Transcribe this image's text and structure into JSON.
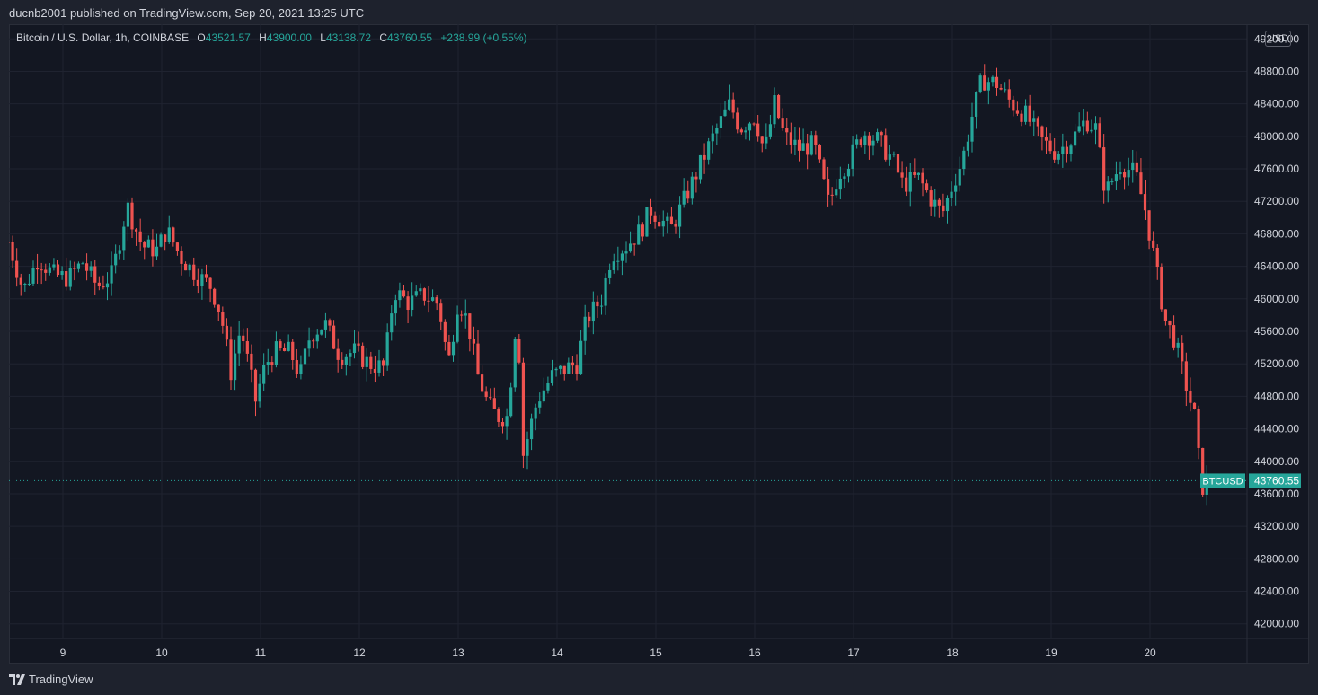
{
  "header": {
    "publisher_line": "ducnb2001 published on TradingView.com, Sep 20, 2021 13:25 UTC"
  },
  "legend": {
    "title": "Bitcoin / U.S. Dollar, 1h, COINBASE",
    "o_label": "O",
    "o_value": "43521.57",
    "h_label": "H",
    "h_value": "43900.00",
    "l_label": "L",
    "l_value": "43138.72",
    "c_label": "C",
    "c_value": "43760.55",
    "change": "+238.99 (+0.55%)"
  },
  "currency_button": "USD",
  "footer": {
    "brand": "TradingView"
  },
  "colors": {
    "up": "#26a69a",
    "down": "#ef5350",
    "background": "#131722",
    "grid": "#1f2330",
    "axis_text": "#d1d4dc"
  },
  "chart_data": {
    "type": "candlestick",
    "symbol": "BTCUSD",
    "last_price": 43760.55,
    "last_price_label": "43760.55",
    "symbol_label": "BTCUSD",
    "y_ticks": [
      "49200.00",
      "48800.00",
      "48400.00",
      "48000.00",
      "47600.00",
      "47200.00",
      "46800.00",
      "46400.00",
      "46000.00",
      "45600.00",
      "45200.00",
      "44800.00",
      "44400.00",
      "44000.00",
      "43600.00",
      "43200.00",
      "42800.00",
      "42400.00",
      "42000.00"
    ],
    "ylim": [
      41820,
      49380
    ],
    "x_ticks": [
      "9",
      "10",
      "11",
      "12",
      "13",
      "14",
      "15",
      "16",
      "17",
      "18",
      "19",
      "20"
    ],
    "x_start_day": 8.45,
    "hours_per_candle": 1,
    "series_path": [
      [
        8.45,
        46700
      ],
      [
        8.6,
        46100
      ],
      [
        8.75,
        46500
      ],
      [
        8.9,
        46300
      ],
      [
        9.05,
        46250
      ],
      [
        9.2,
        46450
      ],
      [
        9.35,
        46150
      ],
      [
        9.5,
        46300
      ],
      [
        9.65,
        47150
      ],
      [
        9.8,
        46650
      ],
      [
        9.95,
        46600
      ],
      [
        10.05,
        46850
      ],
      [
        10.2,
        46500
      ],
      [
        10.35,
        46300
      ],
      [
        10.5,
        46150
      ],
      [
        10.6,
        45800
      ],
      [
        10.7,
        45100
      ],
      [
        10.8,
        45650
      ],
      [
        10.95,
        44750
      ],
      [
        11.05,
        45200
      ],
      [
        11.15,
        45350
      ],
      [
        11.3,
        45350
      ],
      [
        11.4,
        45050
      ],
      [
        11.5,
        45550
      ],
      [
        11.65,
        45700
      ],
      [
        11.8,
        45300
      ],
      [
        11.95,
        45350
      ],
      [
        12.1,
        45200
      ],
      [
        12.25,
        45150
      ],
      [
        12.35,
        46100
      ],
      [
        12.5,
        45950
      ],
      [
        12.65,
        46050
      ],
      [
        12.8,
        45950
      ],
      [
        12.9,
        45200
      ],
      [
        13.0,
        46000
      ],
      [
        13.1,
        45700
      ],
      [
        13.2,
        45050
      ],
      [
        13.3,
        44700
      ],
      [
        13.4,
        44550
      ],
      [
        13.5,
        44550
      ],
      [
        13.6,
        45950
      ],
      [
        13.65,
        44050
      ],
      [
        13.8,
        44750
      ],
      [
        13.95,
        45050
      ],
      [
        14.1,
        45150
      ],
      [
        14.2,
        45200
      ],
      [
        14.3,
        45750
      ],
      [
        14.45,
        46000
      ],
      [
        14.55,
        46550
      ],
      [
        14.7,
        46650
      ],
      [
        14.85,
        46850
      ],
      [
        14.95,
        47100
      ],
      [
        15.15,
        46850
      ],
      [
        15.3,
        47250
      ],
      [
        15.45,
        47650
      ],
      [
        15.6,
        48050
      ],
      [
        15.75,
        48400
      ],
      [
        15.85,
        48100
      ],
      [
        16.0,
        48250
      ],
      [
        16.1,
        47800
      ],
      [
        16.2,
        48400
      ],
      [
        16.3,
        48000
      ],
      [
        16.45,
        47850
      ],
      [
        16.6,
        47900
      ],
      [
        16.75,
        47150
      ],
      [
        16.85,
        47550
      ],
      [
        16.95,
        47700
      ],
      [
        17.1,
        48050
      ],
      [
        17.25,
        47950
      ],
      [
        17.4,
        47700
      ],
      [
        17.5,
        47400
      ],
      [
        17.65,
        47500
      ],
      [
        17.8,
        47200
      ],
      [
        17.9,
        47050
      ],
      [
        18.0,
        47400
      ],
      [
        18.1,
        47700
      ],
      [
        18.2,
        48250
      ],
      [
        18.3,
        48700
      ],
      [
        18.45,
        48650
      ],
      [
        18.6,
        48400
      ],
      [
        18.75,
        48250
      ],
      [
        18.9,
        47950
      ],
      [
        19.05,
        47800
      ],
      [
        19.2,
        47950
      ],
      [
        19.35,
        48200
      ],
      [
        19.45,
        48100
      ],
      [
        19.55,
        47300
      ],
      [
        19.7,
        47650
      ],
      [
        19.85,
        47550
      ],
      [
        19.95,
        47100
      ],
      [
        20.05,
        46450
      ],
      [
        20.15,
        45750
      ],
      [
        20.25,
        45500
      ],
      [
        20.35,
        45000
      ],
      [
        20.45,
        44550
      ],
      [
        20.5,
        43950
      ],
      [
        20.54,
        43640
      ],
      [
        20.58,
        43760
      ]
    ]
  }
}
